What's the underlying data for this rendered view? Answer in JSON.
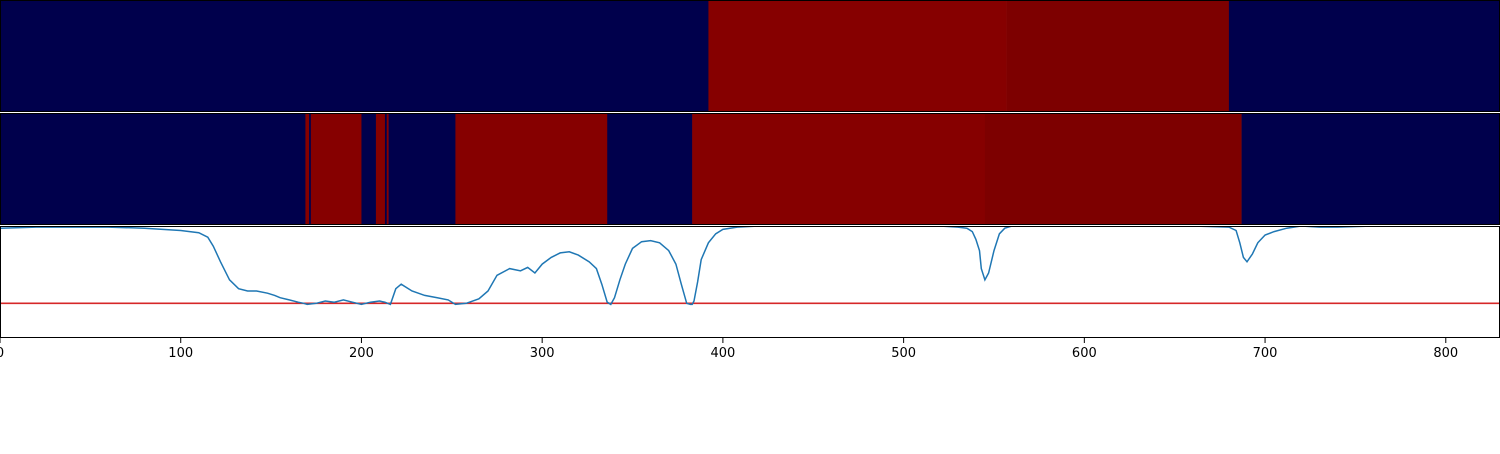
{
  "chart_data": [
    {
      "type": "heatmap",
      "panel": "top-strip",
      "xlim": [
        0,
        830
      ],
      "segments": [
        {
          "start": 0,
          "end": 392,
          "color": "#00004c"
        },
        {
          "start": 392,
          "end": 557,
          "color": "#860000"
        },
        {
          "start": 557,
          "end": 680,
          "color": "#7d0000"
        },
        {
          "start": 680,
          "end": 830,
          "color": "#00004c"
        }
      ]
    },
    {
      "type": "heatmap",
      "panel": "middle-strip",
      "xlim": [
        0,
        830
      ],
      "segments": [
        {
          "start": 0,
          "end": 169,
          "color": "#00004c"
        },
        {
          "start": 169,
          "end": 171,
          "color": "#860000"
        },
        {
          "start": 171,
          "end": 172,
          "color": "#00004c"
        },
        {
          "start": 172,
          "end": 200,
          "color": "#860000"
        },
        {
          "start": 200,
          "end": 208,
          "color": "#00004c"
        },
        {
          "start": 208,
          "end": 213,
          "color": "#860000"
        },
        {
          "start": 213,
          "end": 214,
          "color": "#00004c"
        },
        {
          "start": 214,
          "end": 215,
          "color": "#860000"
        },
        {
          "start": 215,
          "end": 252,
          "color": "#00004c"
        },
        {
          "start": 252,
          "end": 336,
          "color": "#860000"
        },
        {
          "start": 336,
          "end": 383,
          "color": "#00004c"
        },
        {
          "start": 383,
          "end": 545,
          "color": "#860000"
        },
        {
          "start": 545,
          "end": 687,
          "color": "#7d0000"
        },
        {
          "start": 687,
          "end": 830,
          "color": "#00004c"
        }
      ]
    },
    {
      "type": "line",
      "panel": "bottom-line",
      "xlim": [
        0,
        830
      ],
      "ylim": [
        0,
        1
      ],
      "x_ticks": [
        "0",
        "100",
        "200",
        "300",
        "400",
        "500",
        "600",
        "700",
        "800"
      ],
      "x_tick_values": [
        0,
        100,
        200,
        300,
        400,
        500,
        600,
        700,
        800
      ],
      "series": [
        {
          "color": "#1f77b4",
          "x": [
            0,
            20,
            40,
            60,
            80,
            100,
            110,
            115,
            118,
            122,
            127,
            132,
            137,
            142,
            148,
            152,
            155,
            160,
            165,
            168,
            170,
            175,
            180,
            185,
            190,
            195,
            200,
            205,
            210,
            213,
            216,
            219,
            222,
            228,
            235,
            242,
            248,
            252,
            258,
            265,
            270,
            275,
            282,
            288,
            292,
            296,
            300,
            305,
            310,
            315,
            320,
            326,
            330,
            333,
            336,
            338,
            340,
            343,
            346,
            350,
            355,
            360,
            365,
            370,
            374,
            377,
            380,
            382,
            383,
            384,
            386,
            388,
            392,
            396,
            400,
            408,
            420,
            440,
            460,
            480,
            500,
            520,
            530,
            535,
            538,
            540,
            542,
            543,
            545,
            547,
            550,
            553,
            556,
            560,
            580,
            600,
            620,
            640,
            660,
            680,
            684,
            686,
            688,
            690,
            693,
            696,
            700,
            705,
            712,
            720,
            730,
            740,
            760,
            780,
            800,
            830
          ],
          "y": [
            0.98,
            0.99,
            0.99,
            0.99,
            0.98,
            0.96,
            0.94,
            0.9,
            0.82,
            0.68,
            0.52,
            0.44,
            0.42,
            0.42,
            0.4,
            0.38,
            0.36,
            0.34,
            0.32,
            0.31,
            0.3,
            0.31,
            0.33,
            0.32,
            0.34,
            0.32,
            0.3,
            0.32,
            0.33,
            0.32,
            0.3,
            0.44,
            0.48,
            0.42,
            0.38,
            0.36,
            0.34,
            0.3,
            0.31,
            0.35,
            0.42,
            0.56,
            0.62,
            0.6,
            0.63,
            0.58,
            0.66,
            0.72,
            0.76,
            0.77,
            0.74,
            0.68,
            0.62,
            0.48,
            0.32,
            0.3,
            0.36,
            0.52,
            0.66,
            0.8,
            0.86,
            0.87,
            0.85,
            0.78,
            0.66,
            0.48,
            0.31,
            0.3,
            0.3,
            0.33,
            0.5,
            0.7,
            0.85,
            0.93,
            0.97,
            0.99,
            1.0,
            1.0,
            1.0,
            1.0,
            1.0,
            1.0,
            0.99,
            0.98,
            0.95,
            0.88,
            0.78,
            0.62,
            0.52,
            0.58,
            0.78,
            0.93,
            0.98,
            1.0,
            1.0,
            1.0,
            1.0,
            1.0,
            1.0,
            0.99,
            0.96,
            0.85,
            0.72,
            0.68,
            0.75,
            0.85,
            0.92,
            0.95,
            0.98,
            1.0,
            0.99,
            0.99,
            1.0,
            1.0,
            1.0,
            1.0
          ]
        }
      ],
      "threshold": {
        "y": 0.31,
        "color": "#d62728"
      }
    }
  ]
}
